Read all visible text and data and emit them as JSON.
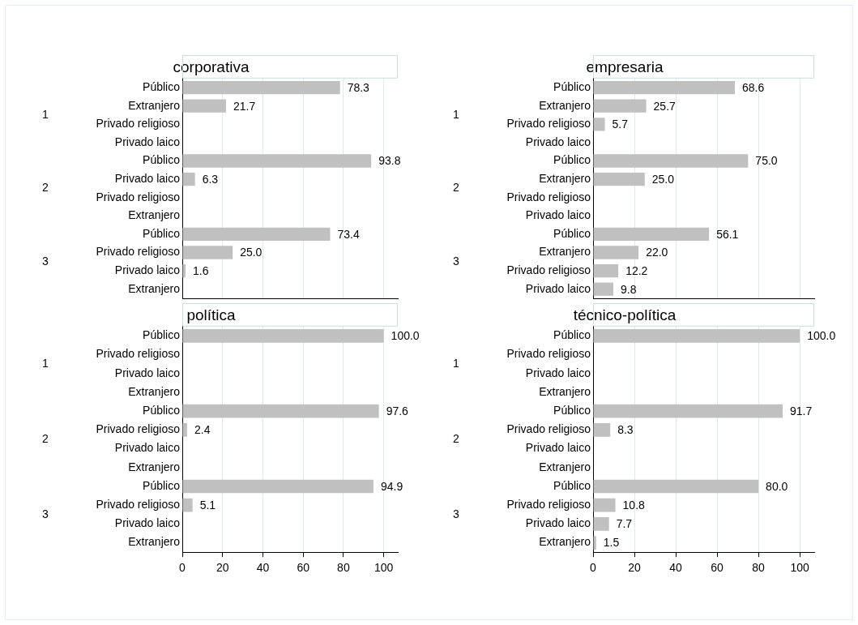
{
  "chart_data": [
    {
      "type": "bar",
      "orientation": "horizontal",
      "title": "corporativa",
      "categories": [
        "Público",
        "Extranjero",
        "Privado religioso",
        "Privado laico",
        "Público",
        "Privado laico",
        "Privado religioso",
        "Extranjero",
        "Público",
        "Privado religioso",
        "Privado laico",
        "Extranjero"
      ],
      "values": [
        78.3,
        21.7,
        null,
        null,
        93.8,
        6.3,
        null,
        null,
        73.4,
        25.0,
        1.6,
        null
      ],
      "value_labels": [
        "78.3",
        "21.7",
        null,
        null,
        "93.8",
        "6.3",
        null,
        null,
        "73.4",
        "25.0",
        "1.6",
        null
      ],
      "color": "#c0c0c0",
      "annotations": [
        "1",
        "2",
        "3"
      ],
      "xlim": [
        0,
        107
      ],
      "xticks": [
        0,
        20,
        40,
        60,
        80,
        100
      ],
      "grid": "x",
      "legend": false,
      "tick_labels": "y"
    },
    {
      "type": "bar",
      "orientation": "horizontal",
      "title": "empresaria",
      "categories": [
        "Público",
        "Extranjero",
        "Privado religioso",
        "Privado laico",
        "Público",
        "Extranjero",
        "Privado religioso",
        "Privado laico",
        "Público",
        "Extranjero",
        "Privado religioso",
        "Privado laico"
      ],
      "values": [
        68.6,
        25.7,
        5.7,
        null,
        75.0,
        25.0,
        null,
        null,
        56.1,
        22.0,
        12.2,
        9.8
      ],
      "value_labels": [
        "68.6",
        "25.7",
        "5.7",
        null,
        "75.0",
        "25.0",
        null,
        null,
        "56.1",
        "22.0",
        "12.2",
        "9.8"
      ],
      "color": "#c0c0c0",
      "annotations": [
        "1",
        "2",
        "3"
      ],
      "xlim": [
        0,
        107
      ],
      "xticks": [
        0,
        20,
        40,
        60,
        80,
        100
      ],
      "grid": "x",
      "legend": false,
      "tick_labels": "y"
    },
    {
      "type": "bar",
      "orientation": "horizontal",
      "title": "política",
      "categories": [
        "Público",
        "Privado religioso",
        "Privado laico",
        "Extranjero",
        "Público",
        "Privado religioso",
        "Privado laico",
        "Extranjero",
        "Público",
        "Privado religioso",
        "Privado laico",
        "Extranjero"
      ],
      "values": [
        100.0,
        null,
        null,
        null,
        97.6,
        2.4,
        null,
        null,
        94.9,
        5.1,
        null,
        null
      ],
      "value_labels": [
        "100.0",
        null,
        null,
        null,
        "97.6",
        "2.4",
        null,
        null,
        "94.9",
        "5.1",
        null,
        null
      ],
      "color": "#c0c0c0",
      "annotations": [
        "1",
        "2",
        "3"
      ],
      "xlim": [
        0,
        107
      ],
      "xticks": [
        0,
        20,
        40,
        60,
        80,
        100
      ],
      "grid": "x",
      "legend": false
    },
    {
      "type": "bar",
      "orientation": "horizontal",
      "title": "técnico-política",
      "categories": [
        "Público",
        "Privado religioso",
        "Privado laico",
        "Extranjero",
        "Público",
        "Privado religioso",
        "Privado laico",
        "Extranjero",
        "Público",
        "Privado religioso",
        "Privado laico",
        "Extranjero"
      ],
      "values": [
        100.0,
        null,
        null,
        null,
        91.7,
        8.3,
        null,
        null,
        80.0,
        10.8,
        7.7,
        1.5
      ],
      "value_labels": [
        "100.0",
        null,
        null,
        null,
        "91.7",
        "8.3",
        null,
        null,
        "80.0",
        "10.8",
        "7.7",
        "1.5"
      ],
      "color": "#c0c0c0",
      "annotations": [
        "1",
        "2",
        "3"
      ],
      "xlim": [
        0,
        107
      ],
      "xticks": [
        0,
        20,
        40,
        60,
        80,
        100
      ],
      "grid": "x",
      "legend": false
    }
  ]
}
